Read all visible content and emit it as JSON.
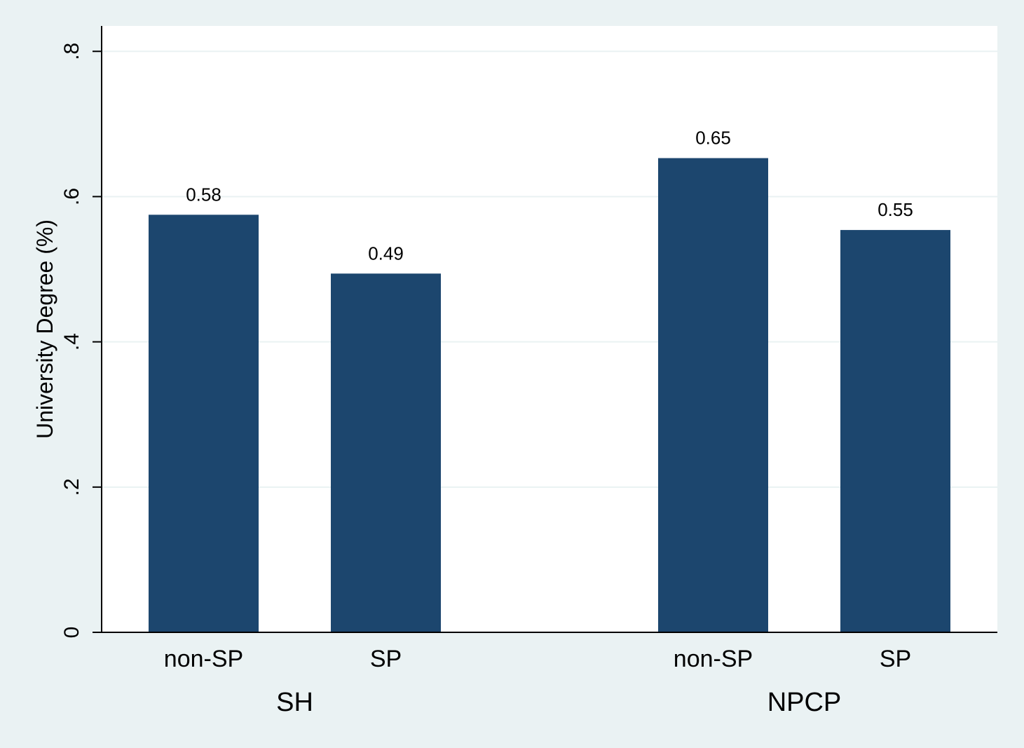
{
  "colors": {
    "background": "#eaf2f3",
    "plot_background": "#ffffff",
    "bar": "#1c466e",
    "grid": "#eaf2f3",
    "axis": "#000000"
  },
  "chart_data": {
    "type": "bar",
    "title": "",
    "xlabel": "",
    "ylabel": "University Degree (%)",
    "ylim": [
      0,
      0.835
    ],
    "yticks": [
      {
        "value": 0,
        "label": "0"
      },
      {
        "value": 0.2,
        "label": ".2"
      },
      {
        "value": 0.4,
        "label": ".4"
      },
      {
        "value": 0.6,
        "label": ".6"
      },
      {
        "value": 0.8,
        "label": ".8"
      }
    ],
    "grid": true,
    "legend": "none",
    "groups": [
      {
        "name": "SH",
        "bars": [
          {
            "category": "non-SP",
            "value": 0.575,
            "label": "0.58"
          },
          {
            "category": "SP",
            "value": 0.494,
            "label": "0.49"
          }
        ]
      },
      {
        "name": "NPCP",
        "bars": [
          {
            "category": "non-SP",
            "value": 0.653,
            "label": "0.65"
          },
          {
            "category": "SP",
            "value": 0.554,
            "label": "0.55"
          }
        ]
      }
    ]
  }
}
